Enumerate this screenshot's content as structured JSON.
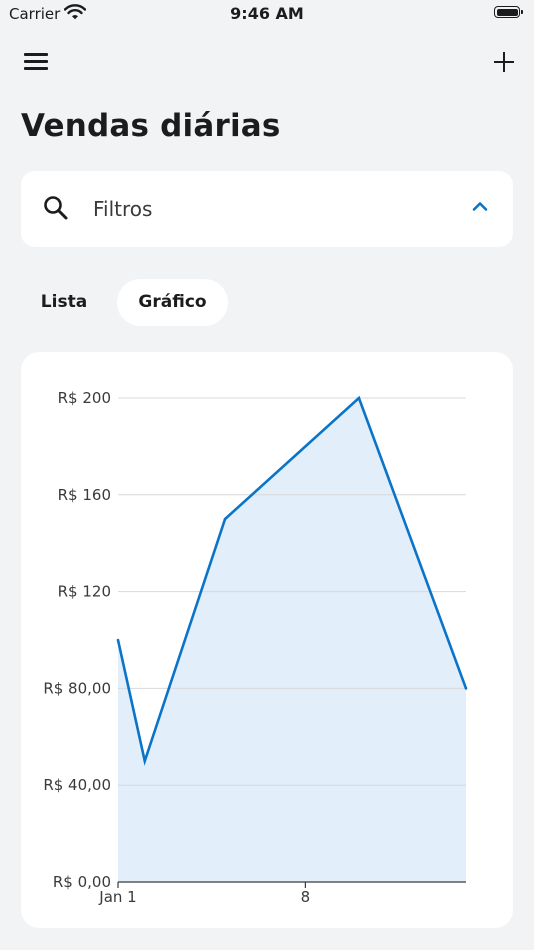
{
  "status_bar": {
    "carrier": "Carrier",
    "time": "9:46 AM"
  },
  "nav": {
    "menu_icon": "hamburger-menu-icon",
    "add_icon": "plus-icon"
  },
  "page": {
    "title": "Vendas diárias"
  },
  "filters": {
    "label": "Filtros",
    "icon": "search-icon",
    "toggle_icon": "chevron-up-icon"
  },
  "segments": {
    "list_label": "Lista",
    "chart_label": "Gráfico",
    "selected": "Gráfico"
  },
  "colors": {
    "accent": "#0a74c9",
    "area_fill": "#e2eef9",
    "background": "#f2f3f5"
  },
  "chart_data": {
    "type": "area",
    "title": "",
    "xlabel": "",
    "ylabel": "",
    "x_range": [
      1,
      14
    ],
    "ylim": [
      0,
      200
    ],
    "y_ticks": [
      {
        "value": 0,
        "label": "R$ 0,00"
      },
      {
        "value": 40,
        "label": "R$ 40,00"
      },
      {
        "value": 80,
        "label": "R$ 80,00"
      },
      {
        "value": 120,
        "label": "R$ 120"
      },
      {
        "value": 160,
        "label": "R$ 160"
      },
      {
        "value": 200,
        "label": "R$ 200"
      }
    ],
    "x_ticks": [
      {
        "value": 1,
        "label": "Jan 1"
      },
      {
        "value": 8,
        "label": "8"
      }
    ],
    "grid": true,
    "series": [
      {
        "x": [
          1,
          2,
          5,
          10,
          14
        ],
        "values": [
          100,
          50,
          150,
          200,
          80
        ]
      }
    ]
  }
}
